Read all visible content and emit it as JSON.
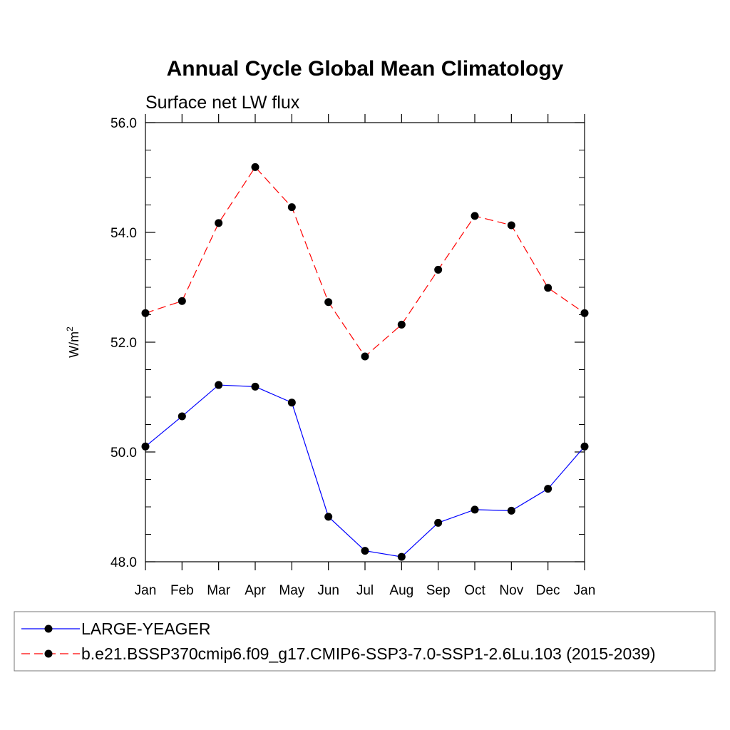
{
  "chart_data": {
    "type": "line",
    "title": "Annual Cycle Global Mean Climatology",
    "subtitle": "Surface net LW flux",
    "ylabel": "W/m",
    "ylabel_sup": "2",
    "xlabel": "",
    "categories": [
      "Jan",
      "Feb",
      "Mar",
      "Apr",
      "May",
      "Jun",
      "Jul",
      "Aug",
      "Sep",
      "Oct",
      "Nov",
      "Dec",
      "Jan"
    ],
    "ylim": [
      48.0,
      56.0
    ],
    "yticks": [
      "48.0",
      "50.0",
      "52.0",
      "54.0",
      "56.0"
    ],
    "series": [
      {
        "name": "LARGE-YEAGER",
        "color": "#0000ff",
        "dash": "solid",
        "values": [
          50.1,
          50.65,
          51.22,
          51.19,
          50.9,
          48.82,
          48.2,
          48.09,
          48.71,
          48.95,
          48.93,
          49.33,
          50.1
        ]
      },
      {
        "name": "b.e21.BSSP370cmip6.f09_g17.CMIP6-SSP3-7.0-SSP1-2.6Lu.103 (2015-2039)",
        "color": "#ff0000",
        "dash": "dashed",
        "values": [
          52.53,
          52.75,
          54.17,
          55.19,
          54.46,
          52.73,
          51.74,
          52.32,
          53.32,
          54.3,
          54.13,
          52.99,
          52.53
        ]
      }
    ],
    "grid": false,
    "legend_position": "bottom"
  }
}
